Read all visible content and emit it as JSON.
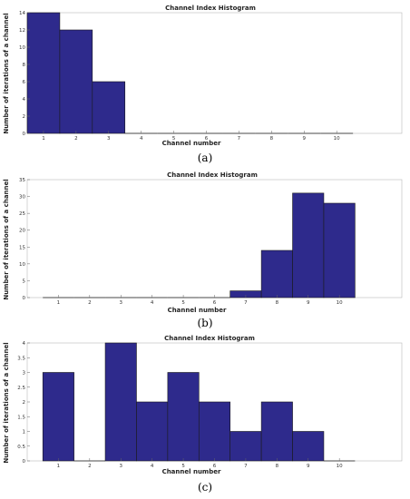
{
  "colors": {
    "bar": "#2e2a8c",
    "bar_edge": "#1a1a1a",
    "frame": "#b8b8b8"
  },
  "chart_data": [
    {
      "type": "bar",
      "caption": "(a)",
      "title": "Channel Index Histogram",
      "xlabel": "Channel number",
      "ylabel": "Number of iterations of a channel",
      "categories": [
        "1",
        "2",
        "3",
        "4",
        "5",
        "6",
        "7",
        "8",
        "9",
        "10"
      ],
      "values": [
        14,
        12,
        6,
        0,
        0,
        0,
        0,
        0,
        0,
        0
      ],
      "ylim": [
        0,
        14
      ],
      "yticks": [
        0,
        2,
        4,
        6,
        8,
        10,
        12,
        14
      ],
      "xlim": [
        0.5,
        12.0
      ],
      "grid": false
    },
    {
      "type": "bar",
      "caption": "(b)",
      "title": "Channel Index Histogram",
      "xlabel": "Channel number",
      "ylabel": "Number of iterations of a channel",
      "categories": [
        "1",
        "2",
        "3",
        "4",
        "5",
        "6",
        "7",
        "8",
        "9",
        "10"
      ],
      "values": [
        0,
        0,
        0,
        0,
        0,
        0,
        2,
        14,
        31,
        28
      ],
      "ylim": [
        0,
        35
      ],
      "yticks": [
        0,
        5,
        10,
        15,
        20,
        25,
        30,
        35
      ],
      "xlim": [
        0.0,
        12.0
      ],
      "grid": false
    },
    {
      "type": "bar",
      "caption": "(c)",
      "title": "Channel Index Histogram",
      "xlabel": "Channel number",
      "ylabel": "Number of iterations of a channel",
      "categories": [
        "1",
        "2",
        "3",
        "4",
        "5",
        "6",
        "7",
        "8",
        "9",
        "10"
      ],
      "values": [
        3,
        0,
        4,
        2,
        3,
        2,
        1,
        2,
        1,
        0
      ],
      "ylim": [
        0,
        4
      ],
      "yticks": [
        0,
        0.5,
        1,
        1.5,
        2,
        2.5,
        3,
        3.5,
        4
      ],
      "xlim": [
        0.0,
        12.0
      ],
      "grid": false
    }
  ]
}
